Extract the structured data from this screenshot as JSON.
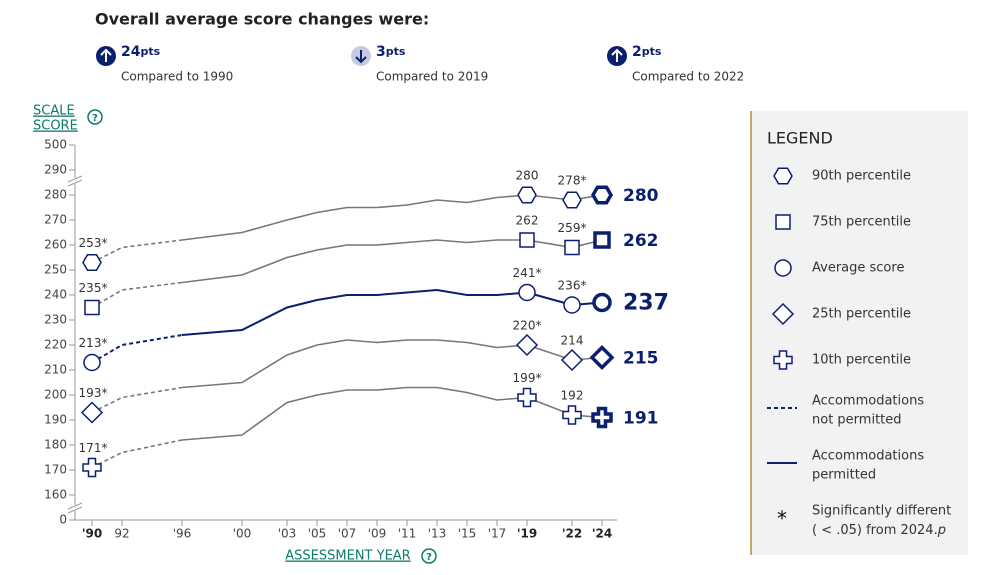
{
  "header": {
    "title": "Overall average score changes were:",
    "changes": [
      {
        "value": 24,
        "unit": "pts",
        "direction": "up",
        "compared": "Compared to 1990"
      },
      {
        "value": 3,
        "unit": "pts",
        "direction": "down",
        "compared": "Compared to 2019"
      },
      {
        "value": 2,
        "unit": "pts",
        "direction": "up",
        "compared": "Compared to 2022"
      }
    ]
  },
  "chart_data": {
    "type": "line",
    "y_label": [
      "SCALE",
      "SCORE"
    ],
    "x_label": "ASSESSMENT YEAR",
    "x": [
      1990,
      1992,
      1996,
      2000,
      2003,
      2005,
      2007,
      2009,
      2011,
      2013,
      2015,
      2017,
      2019,
      2022,
      2024
    ],
    "xlim": [
      1990,
      2024
    ],
    "xticks": [
      {
        "value": 1990,
        "label": "'90"
      },
      {
        "value": 1992,
        "label": "92"
      },
      {
        "value": 1996,
        "label": "'96"
      },
      {
        "value": 2000,
        "label": "'00"
      },
      {
        "value": 2003,
        "label": "'03"
      },
      {
        "value": 2005,
        "label": "'05"
      },
      {
        "value": 2007,
        "label": "'07"
      },
      {
        "value": 2009,
        "label": "'09"
      },
      {
        "value": 2011,
        "label": "'11"
      },
      {
        "value": 2013,
        "label": "'13"
      },
      {
        "value": 2015,
        "label": "'15"
      },
      {
        "value": 2017,
        "label": "'17"
      },
      {
        "value": 2019,
        "label": "'19"
      },
      {
        "value": 2022,
        "label": "'22"
      },
      {
        "value": 2024,
        "label": "'24"
      }
    ],
    "bold_xticks": [
      1990,
      2019,
      2022,
      2024
    ],
    "ylim": [
      0,
      500
    ],
    "yticks": [
      0,
      160,
      170,
      180,
      190,
      200,
      210,
      220,
      230,
      240,
      250,
      260,
      270,
      280,
      290,
      500
    ],
    "axis_break": true,
    "dashed_through_x": 1996,
    "series": [
      {
        "name": "90th percentile",
        "marker": "hexagon",
        "color": "#777777",
        "values": [
          253,
          259,
          262,
          265,
          270,
          273,
          275,
          275,
          276,
          278,
          277,
          279,
          280,
          278,
          280
        ],
        "value_labels": [
          "253*",
          null,
          null,
          null,
          null,
          null,
          null,
          null,
          null,
          null,
          null,
          null,
          "280",
          "278*",
          "280"
        ]
      },
      {
        "name": "75th percentile",
        "marker": "square",
        "color": "#777777",
        "values": [
          235,
          242,
          245,
          248,
          255,
          258,
          260,
          260,
          261,
          262,
          261,
          262,
          262,
          259,
          262
        ],
        "value_labels": [
          "235*",
          null,
          null,
          null,
          null,
          null,
          null,
          null,
          null,
          null,
          null,
          null,
          "262",
          "259*",
          "262"
        ]
      },
      {
        "name": "Average score",
        "marker": "circle",
        "color": "#0a1f6e",
        "values": [
          213,
          220,
          224,
          226,
          235,
          238,
          240,
          240,
          241,
          242,
          240,
          240,
          241,
          236,
          237
        ],
        "value_labels": [
          "213*",
          null,
          null,
          null,
          null,
          null,
          null,
          null,
          null,
          null,
          null,
          null,
          "241*",
          "236*",
          "237"
        ]
      },
      {
        "name": "25th percentile",
        "marker": "diamond",
        "color": "#777777",
        "values": [
          193,
          199,
          203,
          205,
          216,
          220,
          222,
          221,
          222,
          222,
          221,
          219,
          220,
          214,
          215
        ],
        "value_labels": [
          "193*",
          null,
          null,
          null,
          null,
          null,
          null,
          null,
          null,
          null,
          null,
          null,
          "220*",
          "214",
          "215"
        ]
      },
      {
        "name": "10th percentile",
        "marker": "plus",
        "color": "#777777",
        "values": [
          171,
          177,
          182,
          184,
          197,
          200,
          202,
          202,
          203,
          203,
          201,
          198,
          199,
          192,
          191
        ],
        "value_labels": [
          "171*",
          null,
          null,
          null,
          null,
          null,
          null,
          null,
          null,
          null,
          null,
          null,
          "199*",
          "192",
          "191"
        ]
      }
    ],
    "marker_color": "#0a1f6e",
    "legend": {
      "title": "LEGEND",
      "dashed": [
        "Accommodations",
        "not permitted"
      ],
      "solid": [
        "Accommodations",
        "permitted"
      ],
      "star": {
        "symbol": "*",
        "text": [
          "Significantly different",
          "( < .05) from 2024."
        ],
        "italic": "p"
      }
    }
  }
}
